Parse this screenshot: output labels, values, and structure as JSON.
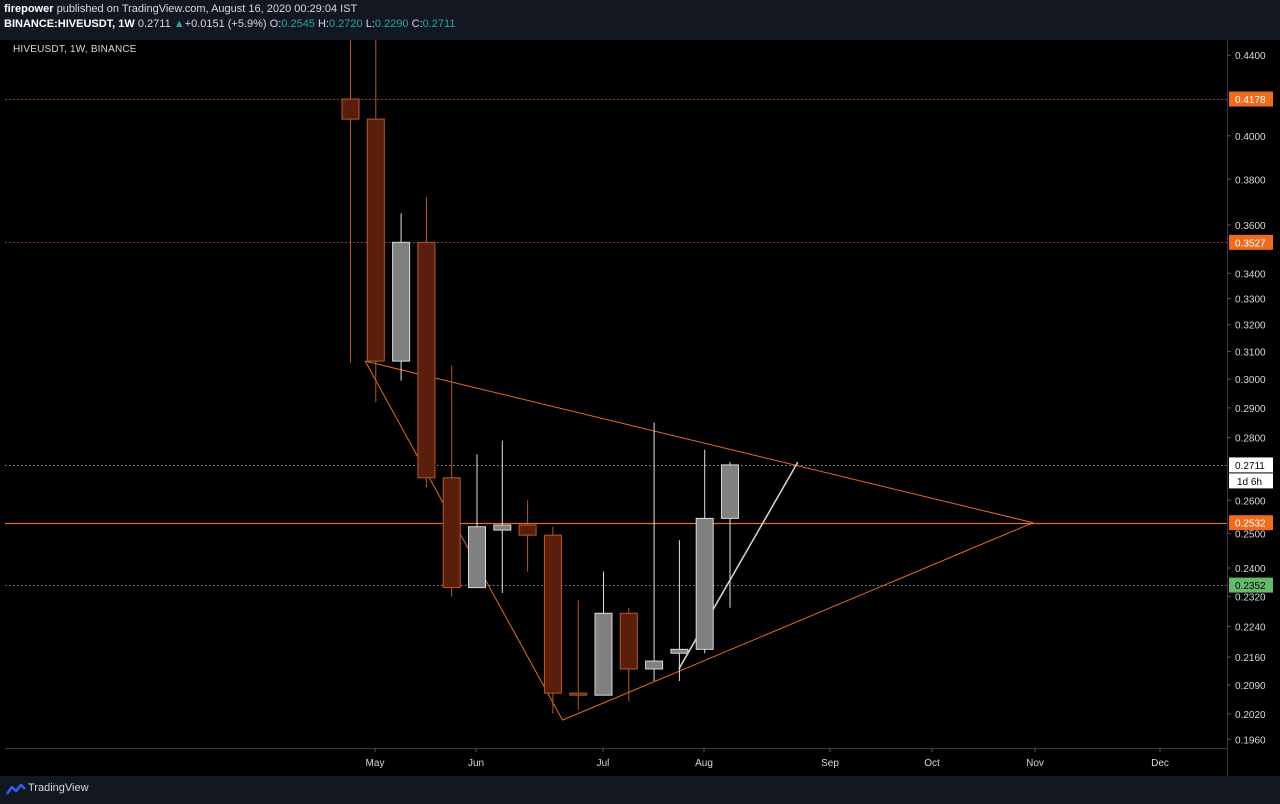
{
  "header": {
    "author": "firepower",
    "published_text": "published on TradingView.com, August 16, 2020 00:29:04 IST",
    "symbol": "BINANCE:HIVEUSDT, 1W",
    "last": "0.2711",
    "change_arrow": "▲",
    "change": "+0.0151 (+5.9%)",
    "o_label": "O:",
    "o": "0.2545",
    "h_label": "H:",
    "h": "0.2720",
    "l_label": "L:",
    "l": "0.2290",
    "c_label": "C:",
    "c": "0.2711"
  },
  "chart_label": "HIVEUSDT, 1W, BINANCE",
  "footer": {
    "brand": "TradingView"
  },
  "colors": {
    "bear": "#5a1f0c",
    "bear_stroke": "#b85a2a",
    "bull": "#808080",
    "bull_stroke": "#d9d9d9",
    "trend": "#e36c25",
    "marker_orange": "#ef6c1e",
    "marker_green": "#66bb6a",
    "axis_text": "#d9d9d9"
  },
  "chart_data": {
    "type": "candlestick",
    "interval": "1W",
    "scale": "log",
    "ylim": [
      0.194,
      0.448
    ],
    "y_ticks": [
      "0.4400",
      "0.4000",
      "0.3800",
      "0.3600",
      "0.3400",
      "0.3300",
      "0.3200",
      "0.3100",
      "0.3000",
      "0.2900",
      "0.2800",
      "0.2600",
      "0.2500",
      "0.2400",
      "0.2320",
      "0.2240",
      "0.2160",
      "0.2090",
      "0.2020",
      "0.1960"
    ],
    "x_ticks": [
      "May",
      "Jun",
      "Jul",
      "Aug",
      "Sep",
      "Oct",
      "Nov",
      "Dec"
    ],
    "candles": [
      {
        "t": 0,
        "o": 0.4178,
        "h": 0.46,
        "l": 0.306,
        "c": 0.408
      },
      {
        "t": 1,
        "o": 0.408,
        "h": 0.46,
        "l": 0.292,
        "c": 0.3065
      },
      {
        "t": 2,
        "o": 0.3065,
        "h": 0.365,
        "l": 0.2995,
        "c": 0.3527
      },
      {
        "t": 3,
        "o": 0.3527,
        "h": 0.372,
        "l": 0.264,
        "c": 0.267
      },
      {
        "t": 4,
        "o": 0.267,
        "h": 0.305,
        "l": 0.232,
        "c": 0.2345
      },
      {
        "t": 5,
        "o": 0.2345,
        "h": 0.2745,
        "l": 0.2345,
        "c": 0.252
      },
      {
        "t": 6,
        "o": 0.251,
        "h": 0.279,
        "l": 0.233,
        "c": 0.2525
      },
      {
        "t": 7,
        "o": 0.2525,
        "h": 0.26,
        "l": 0.239,
        "c": 0.2495
      },
      {
        "t": 8,
        "o": 0.2495,
        "h": 0.252,
        "l": 0.202,
        "c": 0.207
      },
      {
        "t": 9,
        "o": 0.207,
        "h": 0.231,
        "l": 0.203,
        "c": 0.2065
      },
      {
        "t": 10,
        "o": 0.2065,
        "h": 0.239,
        "l": 0.2065,
        "c": 0.2275
      },
      {
        "t": 11,
        "o": 0.2275,
        "h": 0.229,
        "l": 0.205,
        "c": 0.213
      },
      {
        "t": 12,
        "o": 0.213,
        "h": 0.285,
        "l": 0.21,
        "c": 0.215
      },
      {
        "t": 13,
        "o": 0.217,
        "h": 0.248,
        "l": 0.21,
        "c": 0.218
      },
      {
        "t": 14,
        "o": 0.218,
        "h": 0.276,
        "l": 0.217,
        "c": 0.2545
      },
      {
        "t": 15,
        "o": 0.2545,
        "h": 0.272,
        "l": 0.229,
        "c": 0.2711
      }
    ],
    "horizontal_levels": [
      {
        "value": 0.4178,
        "label": "0.4178",
        "style": "dotted",
        "marker": "orange"
      },
      {
        "value": 0.3527,
        "label": "0.3527",
        "style": "dotted",
        "marker": "orange"
      },
      {
        "value": 0.2711,
        "label": "0.2711",
        "style": "dotted",
        "marker": "white"
      },
      {
        "value": 0.2532,
        "label": "0.2532",
        "style": "solid",
        "marker": "orange"
      },
      {
        "value": 0.2352,
        "label": "0.2352",
        "style": "dotted",
        "marker": "green"
      }
    ],
    "countdown_label": "1d 6h",
    "trendlines": [
      {
        "from": [
          0.6,
          0.3065
        ],
        "to": [
          8.4,
          0.2005
        ],
        "color": "orange"
      },
      {
        "from": [
          8.4,
          0.2005
        ],
        "to": [
          27.0,
          0.2532
        ],
        "color": "orange"
      },
      {
        "from": [
          0.6,
          0.3065
        ],
        "to": [
          27.0,
          0.2532
        ],
        "color": "orange"
      },
      {
        "from": [
          13.0,
          0.213
        ],
        "to": [
          17.7,
          0.272
        ],
        "color": "white"
      }
    ]
  }
}
